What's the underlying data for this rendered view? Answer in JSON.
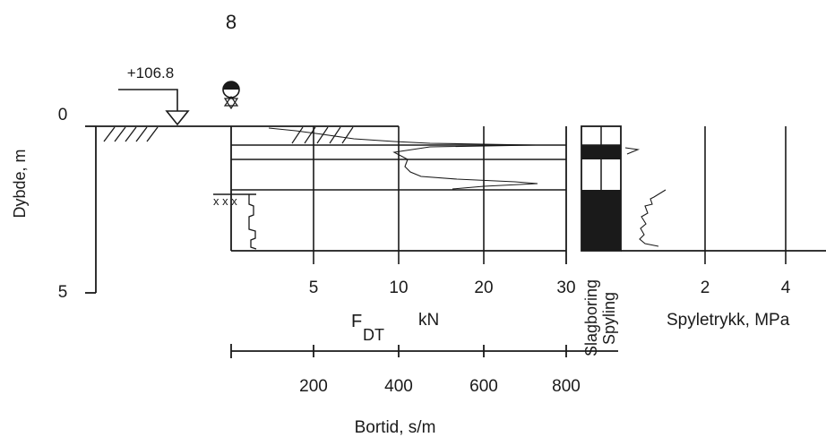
{
  "borehole_number": "8",
  "ground_level": "+106.8",
  "depth_axis": {
    "label": "Dybde, m",
    "ticks": [
      "0",
      "5"
    ]
  },
  "force_axis": {
    "label_main": "F",
    "label_sub": "DT",
    "unit": "kN",
    "ticks": [
      "5",
      "10",
      "20",
      "30"
    ]
  },
  "time_axis": {
    "label": "Bortid, s/m",
    "ticks": [
      "200",
      "400",
      "600",
      "800"
    ]
  },
  "column_labels": {
    "hammer": "Slagboring",
    "flushing": "Spyling"
  },
  "pressure_axis": {
    "label": "Spyletrykk, MPa",
    "ticks": [
      "2",
      "4"
    ]
  },
  "colors": {
    "ink": "#1a1a1a",
    "background": "#ffffff"
  },
  "icons": {
    "symbol": "sounding-symbol-icon",
    "ground_marker": "ground-level-triangle-icon"
  }
}
